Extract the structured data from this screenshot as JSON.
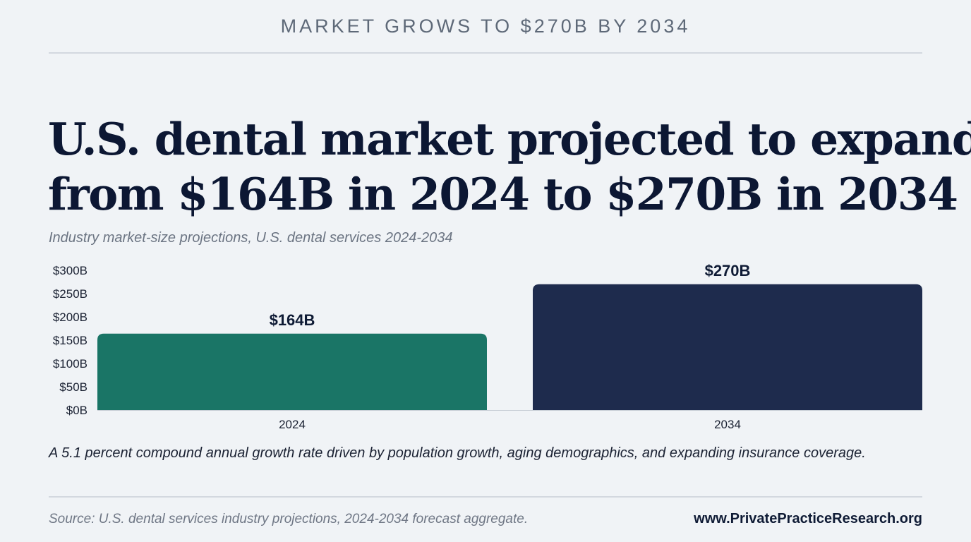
{
  "kicker": "MARKET GROWS TO $270B BY 2034",
  "headline": {
    "line1": "U.S. dental market projected to expand",
    "line2": "from $164B in 2024 to $270B in 2034"
  },
  "subtitle": "Industry market-size projections, U.S. dental services 2024-2034",
  "caption": "A 5.1 percent compound annual growth rate driven by population growth, aging demographics, and expanding insurance coverage.",
  "footer": {
    "source": "Source: U.S. dental services industry projections, 2024-2034 forecast aggregate.",
    "website": "www.PrivatePracticeResearch.org"
  },
  "chart_data": {
    "type": "bar",
    "categories": [
      "2024",
      "2034"
    ],
    "values": [
      164,
      270
    ],
    "value_labels": [
      "$164B",
      "$270B"
    ],
    "bar_colors": [
      "#1a7566",
      "#1e2b4d"
    ],
    "y_ticks": [
      0,
      50,
      100,
      150,
      200,
      250,
      300
    ],
    "y_tick_labels": [
      "$0B",
      "$50B",
      "$100B",
      "$150B",
      "$200B",
      "$250B",
      "$300B"
    ],
    "ylim": [
      0,
      300
    ],
    "grid": false,
    "legend": "none"
  }
}
